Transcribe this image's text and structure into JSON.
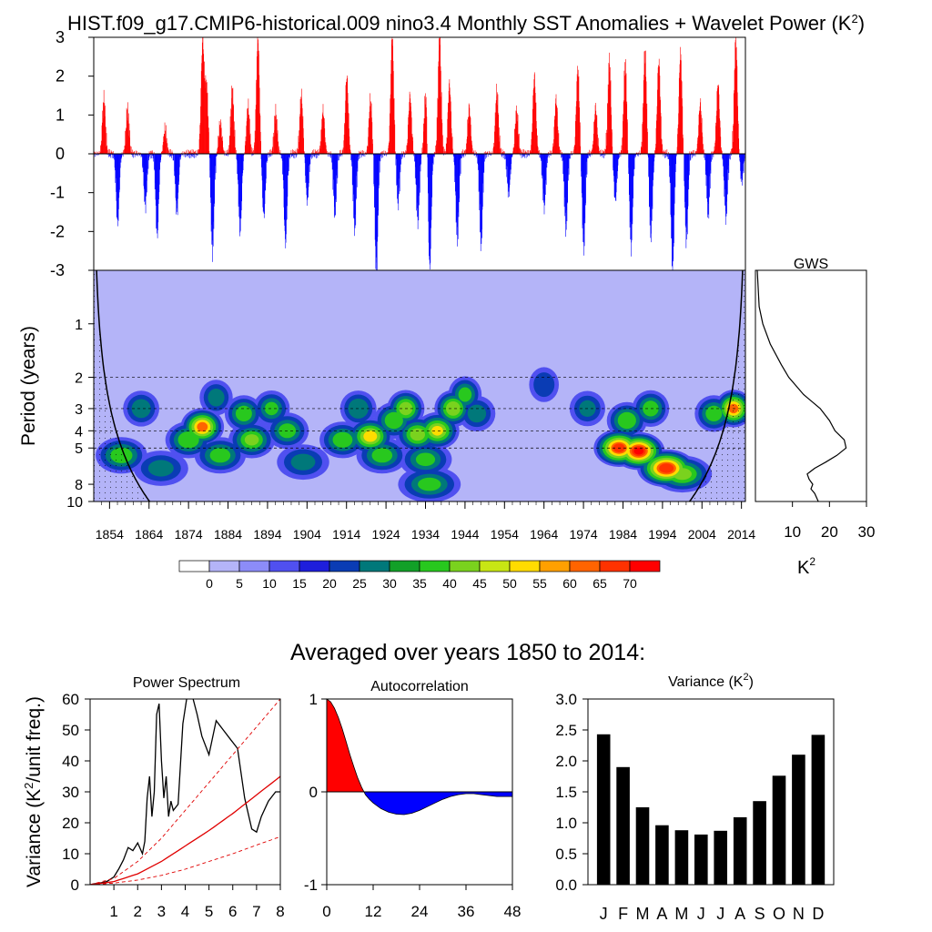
{
  "title": "HIST.f09_g17.CMIP6-historical.009 nino3.4 Monthly SST Anomalies + Wavelet Power (K",
  "title_sup": "2",
  "title_close": ")",
  "colors": {
    "positive": "#ff0000",
    "negative": "#0000ff",
    "axis": "#000000"
  },
  "chart_data": [
    {
      "id": "sst_anomaly",
      "type": "bar",
      "title": "",
      "ylim": [
        -3,
        3
      ],
      "ytick_labels": [
        "3",
        "2",
        "1",
        "0",
        "-1",
        "-2",
        "-3"
      ],
      "xlim": [
        1850,
        2015
      ],
      "values_note": "approximate monthly nino3.4 anomalies (K), 1850-2014",
      "peaks": [
        {
          "year": 1852.5,
          "v": 1.4
        },
        {
          "year": 1856,
          "v": -1.8
        },
        {
          "year": 1858.5,
          "v": 1.1
        },
        {
          "year": 1863,
          "v": -1.3
        },
        {
          "year": 1866,
          "v": -2.1
        },
        {
          "year": 1868,
          "v": 0.6
        },
        {
          "year": 1871,
          "v": -1.5
        },
        {
          "year": 1877.5,
          "v": 2.9
        },
        {
          "year": 1878.5,
          "v": 1.7
        },
        {
          "year": 1880,
          "v": -2.5
        },
        {
          "year": 1882,
          "v": 0.8
        },
        {
          "year": 1885,
          "v": 1.6
        },
        {
          "year": 1887,
          "v": -2.0
        },
        {
          "year": 1889,
          "v": 1.2
        },
        {
          "year": 1891.5,
          "v": 3.0
        },
        {
          "year": 1893,
          "v": -1.6
        },
        {
          "year": 1896,
          "v": 1.0
        },
        {
          "year": 1898.5,
          "v": -2.3
        },
        {
          "year": 1902.5,
          "v": 1.5
        },
        {
          "year": 1904,
          "v": -1.2
        },
        {
          "year": 1908,
          "v": 1.1
        },
        {
          "year": 1911,
          "v": -1.5
        },
        {
          "year": 1914,
          "v": 2.0
        },
        {
          "year": 1916,
          "v": -1.9
        },
        {
          "year": 1920,
          "v": 1.4
        },
        {
          "year": 1921.5,
          "v": -3.0
        },
        {
          "year": 1925.5,
          "v": 3.0
        },
        {
          "year": 1927,
          "v": -1.2
        },
        {
          "year": 1930,
          "v": 1.5
        },
        {
          "year": 1932,
          "v": -1.7
        },
        {
          "year": 1934,
          "v": 1.6
        },
        {
          "year": 1935,
          "v": -3.0
        },
        {
          "year": 1937.5,
          "v": 3.0
        },
        {
          "year": 1940,
          "v": 1.8
        },
        {
          "year": 1942,
          "v": -2.2
        },
        {
          "year": 1945,
          "v": 1.2
        },
        {
          "year": 1948,
          "v": -2.3
        },
        {
          "year": 1952,
          "v": 1.6
        },
        {
          "year": 1955,
          "v": -1.0
        },
        {
          "year": 1957,
          "v": 1.1
        },
        {
          "year": 1961.5,
          "v": 2.0
        },
        {
          "year": 1964,
          "v": -1.3
        },
        {
          "year": 1967,
          "v": 1.4
        },
        {
          "year": 1969.5,
          "v": -1.9
        },
        {
          "year": 1972.5,
          "v": 2.2
        },
        {
          "year": 1974,
          "v": -2.4
        },
        {
          "year": 1977,
          "v": 1.2
        },
        {
          "year": 1980.5,
          "v": 2.4
        },
        {
          "year": 1982,
          "v": -1.2
        },
        {
          "year": 1984.5,
          "v": 2.3
        },
        {
          "year": 1986,
          "v": -2.4
        },
        {
          "year": 1989.5,
          "v": 2.6
        },
        {
          "year": 1991,
          "v": -2.1
        },
        {
          "year": 1993,
          "v": 2.4
        },
        {
          "year": 1996.5,
          "v": -3.0
        },
        {
          "year": 1998.5,
          "v": 2.6
        },
        {
          "year": 2000,
          "v": -2.2
        },
        {
          "year": 2003.5,
          "v": 1.3
        },
        {
          "year": 2005.5,
          "v": -1.5
        },
        {
          "year": 2008,
          "v": 1.8
        },
        {
          "year": 2010,
          "v": -1.6
        },
        {
          "year": 2012.5,
          "v": 3.0
        },
        {
          "year": 2014,
          "v": -0.7
        }
      ]
    },
    {
      "id": "wavelet_power",
      "type": "heatmap",
      "ylabel": "Period (years)",
      "ytick_labels": [
        "1",
        "2",
        "3",
        "4",
        "5",
        "8",
        "10"
      ],
      "ytick_values": [
        1,
        2,
        3,
        4,
        5,
        8,
        10
      ],
      "ylim_period": [
        0.5,
        10
      ],
      "xtick_labels": [
        "1854",
        "1864",
        "1874",
        "1884",
        "1894",
        "1904",
        "1914",
        "1924",
        "1934",
        "1944",
        "1954",
        "1964",
        "1974",
        "1984",
        "1994",
        "2004",
        "2014"
      ],
      "xlim": [
        1850,
        2015
      ],
      "levels": [
        0,
        5,
        10,
        15,
        20,
        25,
        30,
        35,
        40,
        45,
        50,
        55,
        60,
        65,
        70
      ],
      "level_colors": [
        "#ffffff",
        "#b4b4f8",
        "#8c8cf8",
        "#5050f0",
        "#1e1edc",
        "#0a3cb4",
        "#00787a",
        "#12a028",
        "#28c81e",
        "#7ad21e",
        "#c8e614",
        "#ffdc00",
        "#ffa000",
        "#ff6400",
        "#ff3200",
        "#ff0000"
      ],
      "blobs": [
        {
          "year": 1857,
          "p": 5.5,
          "power": 40
        },
        {
          "year": 1862,
          "p": 3.0,
          "power": 32
        },
        {
          "year": 1867,
          "p": 6.5,
          "power": 28
        },
        {
          "year": 1874,
          "p": 4.5,
          "power": 42
        },
        {
          "year": 1877.5,
          "p": 3.8,
          "power": 62
        },
        {
          "year": 1881,
          "p": 2.6,
          "power": 30
        },
        {
          "year": 1882,
          "p": 5.5,
          "power": 38
        },
        {
          "year": 1888,
          "p": 3.2,
          "power": 40
        },
        {
          "year": 1890,
          "p": 4.5,
          "power": 44
        },
        {
          "year": 1895,
          "p": 3.0,
          "power": 36
        },
        {
          "year": 1899,
          "p": 4.0,
          "power": 38
        },
        {
          "year": 1903,
          "p": 6.0,
          "power": 28
        },
        {
          "year": 1913,
          "p": 4.5,
          "power": 40
        },
        {
          "year": 1917,
          "p": 3.0,
          "power": 34
        },
        {
          "year": 1920,
          "p": 4.3,
          "power": 55
        },
        {
          "year": 1923,
          "p": 5.5,
          "power": 38
        },
        {
          "year": 1926,
          "p": 3.5,
          "power": 42
        },
        {
          "year": 1929,
          "p": 3.0,
          "power": 48
        },
        {
          "year": 1932,
          "p": 4.2,
          "power": 46
        },
        {
          "year": 1934,
          "p": 5.8,
          "power": 36
        },
        {
          "year": 1937,
          "p": 4.0,
          "power": 52
        },
        {
          "year": 1941,
          "p": 3.0,
          "power": 50
        },
        {
          "year": 1944,
          "p": 2.5,
          "power": 38
        },
        {
          "year": 1935,
          "p": 8.0,
          "power": 36
        },
        {
          "year": 1947,
          "p": 3.2,
          "power": 30
        },
        {
          "year": 1964,
          "p": 2.2,
          "power": 25
        },
        {
          "year": 1975,
          "p": 3.0,
          "power": 28
        },
        {
          "year": 1983,
          "p": 5.0,
          "power": 68
        },
        {
          "year": 1988,
          "p": 5.2,
          "power": 72
        },
        {
          "year": 1985,
          "p": 3.5,
          "power": 42
        },
        {
          "year": 1991,
          "p": 3.0,
          "power": 40
        },
        {
          "year": 1995,
          "p": 6.5,
          "power": 70
        },
        {
          "year": 1999,
          "p": 7.0,
          "power": 45
        },
        {
          "year": 2007,
          "p": 3.2,
          "power": 40
        },
        {
          "year": 2012,
          "p": 3.0,
          "power": 62
        }
      ]
    },
    {
      "id": "gws",
      "type": "line",
      "title": "GWS",
      "xlabel": "K",
      "xlabel_sup": "2",
      "xtick_labels": [
        "10",
        "20",
        "30"
      ],
      "xlim": [
        0,
        30
      ],
      "period_values": [
        0.5,
        0.8,
        1.0,
        1.3,
        1.7,
        2.0,
        2.5,
        3.0,
        3.5,
        4.0,
        4.5,
        5.0,
        5.5,
        6.0,
        6.5,
        7.0,
        7.5,
        8.0,
        8.5,
        9.0,
        10.0
      ],
      "power_values": [
        0.5,
        1.0,
        2.0,
        4.0,
        7.0,
        9.0,
        13.0,
        17.5,
        20.0,
        21.5,
        24.0,
        24.5,
        22.0,
        19.0,
        16.0,
        14.0,
        14.5,
        15.5,
        15.0,
        16.0,
        17.0
      ]
    },
    {
      "id": "power_spectrum",
      "type": "line",
      "title": "Power Spectrum",
      "ylabel": "Variance (K",
      "ylabel_sup": "2",
      "ylabel_tail": "/unit freq.)",
      "xlim": [
        0,
        8
      ],
      "ylim": [
        0,
        60
      ],
      "xtick_labels": [
        "1",
        "2",
        "3",
        "4",
        "5",
        "6",
        "7",
        "8"
      ],
      "ytick_labels": [
        "0",
        "10",
        "20",
        "30",
        "40",
        "50",
        "60"
      ],
      "series": [
        {
          "name": "spectrum",
          "x": [
            0.1,
            0.4,
            0.7,
            1.0,
            1.2,
            1.4,
            1.6,
            1.8,
            2.0,
            2.2,
            2.3,
            2.4,
            2.5,
            2.6,
            2.7,
            2.8,
            2.9,
            3.0,
            3.1,
            3.2,
            3.3,
            3.4,
            3.5,
            3.7,
            3.9,
            4.1,
            4.3,
            4.5,
            4.7,
            5.0,
            5.3,
            5.6,
            5.9,
            6.2,
            6.5,
            6.8,
            7.0,
            7.2,
            7.5,
            7.8,
            8.0
          ],
          "y": [
            0.2,
            0.5,
            1.0,
            2.5,
            5.0,
            8.0,
            12.0,
            11.0,
            13.5,
            10.0,
            14.0,
            28.0,
            35.0,
            22.0,
            30.0,
            55.0,
            58.5,
            40.0,
            28.0,
            35.0,
            22.0,
            27.0,
            24.0,
            26.0,
            52.0,
            62.0,
            61.0,
            55.0,
            48.0,
            42.0,
            53.0,
            50.0,
            47.0,
            44.0,
            28.0,
            18.0,
            17.0,
            22.0,
            27.0,
            30.0,
            30.0
          ]
        },
        {
          "name": "red-noise",
          "x": [
            0,
            1,
            2,
            3,
            4,
            5,
            6,
            7,
            8
          ],
          "y": [
            0,
            1.0,
            3.5,
            7.5,
            12.5,
            17.5,
            23.0,
            29.0,
            35.0
          ]
        },
        {
          "name": "upper-95",
          "x": [
            0,
            1,
            2,
            3,
            4,
            5,
            6,
            7,
            8
          ],
          "y": [
            0,
            2.0,
            7.5,
            15.0,
            24.0,
            33.0,
            42.0,
            51.0,
            60.0
          ]
        },
        {
          "name": "lower-95",
          "x": [
            0,
            1,
            2,
            3,
            4,
            5,
            6,
            7,
            8
          ],
          "y": [
            0,
            0.5,
            1.5,
            3.0,
            5.0,
            7.5,
            10.0,
            12.8,
            15.5
          ]
        }
      ]
    },
    {
      "id": "autocorrelation",
      "type": "area",
      "title": "Autocorrelation",
      "xlim": [
        0,
        48
      ],
      "ylim": [
        -1,
        1
      ],
      "xtick_labels": [
        "0",
        "12",
        "24",
        "36",
        "48"
      ],
      "ytick_labels": [
        "1",
        "0",
        "-1"
      ],
      "x": [
        0,
        1,
        2,
        3,
        4,
        5,
        6,
        7,
        8,
        9,
        10,
        11,
        12,
        14,
        16,
        18,
        20,
        22,
        24,
        26,
        28,
        30,
        32,
        34,
        36,
        38,
        40,
        44,
        48
      ],
      "y": [
        1.0,
        0.97,
        0.9,
        0.8,
        0.68,
        0.54,
        0.4,
        0.27,
        0.15,
        0.05,
        -0.03,
        -0.08,
        -0.12,
        -0.18,
        -0.22,
        -0.24,
        -0.245,
        -0.23,
        -0.2,
        -0.16,
        -0.12,
        -0.08,
        -0.05,
        -0.03,
        -0.02,
        -0.02,
        -0.03,
        -0.05,
        -0.05
      ]
    },
    {
      "id": "monthly_variance",
      "type": "bar",
      "title": "Variance (K",
      "title_sup": "2",
      "title_close": ")",
      "categories": [
        "J",
        "F",
        "M",
        "A",
        "M",
        "J",
        "J",
        "A",
        "S",
        "O",
        "N",
        "D"
      ],
      "values": [
        2.43,
        1.9,
        1.25,
        0.96,
        0.88,
        0.81,
        0.87,
        1.09,
        1.35,
        1.76,
        2.1,
        2.42
      ],
      "ylim": [
        0,
        3
      ],
      "ytick_labels": [
        "0.0",
        "0.5",
        "1.0",
        "1.5",
        "2.0",
        "2.5",
        "3.0"
      ]
    }
  ],
  "averaged_title": "Averaged over years 1850 to 2014:"
}
